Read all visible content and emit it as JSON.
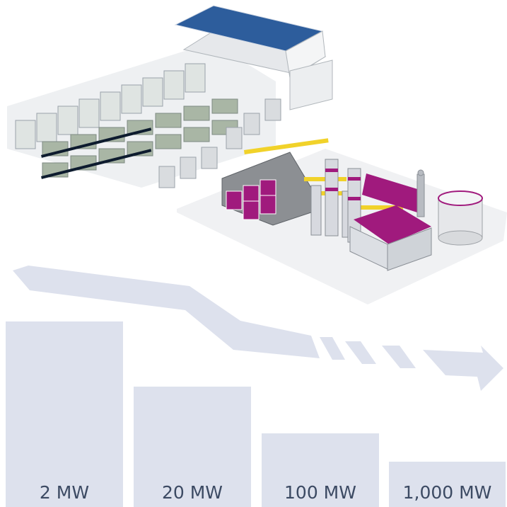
{
  "capacity_bars": [
    {
      "label": "2 MW",
      "value_mw": 2
    },
    {
      "label": "20 MW",
      "value_mw": 20
    },
    {
      "label": "100 MW",
      "value_mw": 100
    },
    {
      "label": "1,000 MW",
      "value_mw": 1000
    }
  ],
  "colors": {
    "bar": "#dde1ed",
    "arrow": "#dde1ed",
    "label_text": "#3c4a63",
    "accent_magenta": "#a01a7d",
    "accent_yellow": "#f1d22a",
    "solar_panel": "#2d5d9c"
  },
  "icons": [
    "solar-roof",
    "electrolyzer-modules",
    "transformers",
    "chemical-plant",
    "storage-tank",
    "chimney"
  ]
}
